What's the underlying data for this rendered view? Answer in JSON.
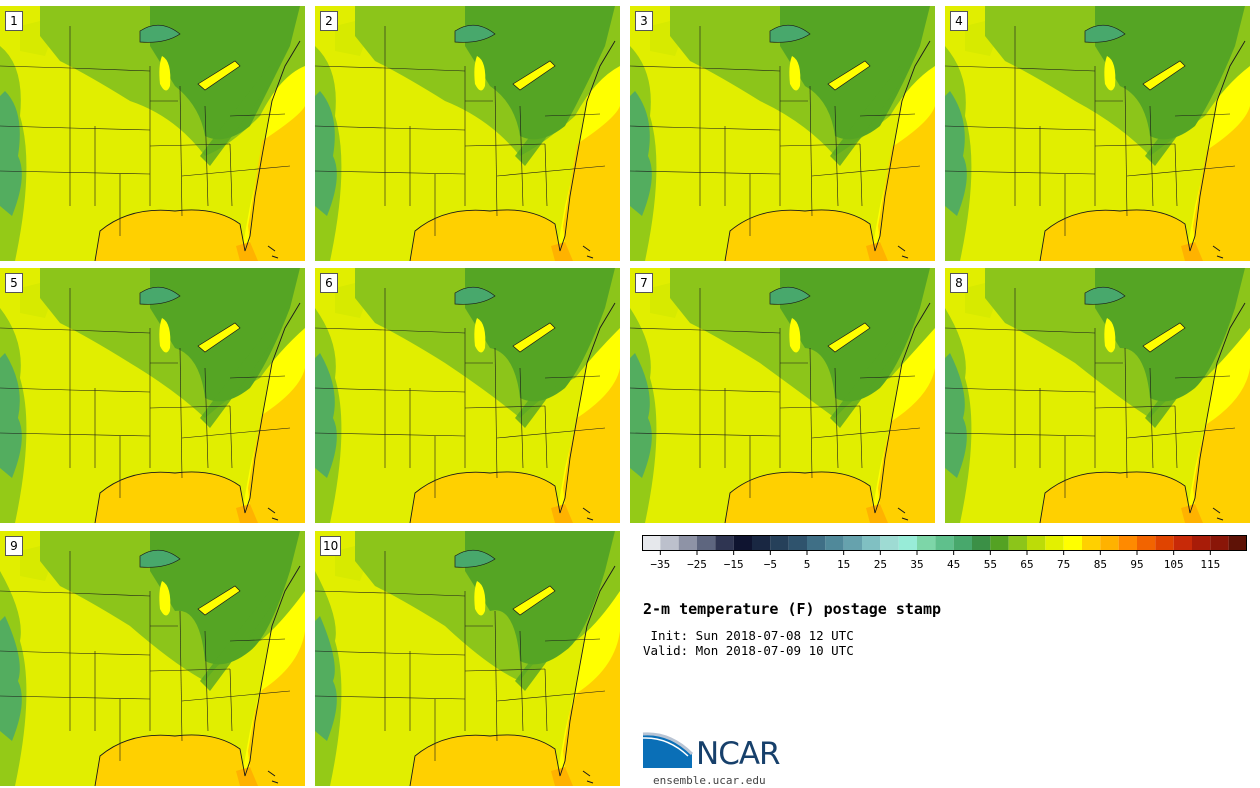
{
  "figure": {
    "title": "2-m temperature (F) postage stamp",
    "init_line": " Init: Sun 2018-07-08 12 UTC",
    "valid_line": "Valid: Mon 2018-07-09 10 UTC"
  },
  "members": [
    "1",
    "2",
    "3",
    "4",
    "5",
    "6",
    "7",
    "8",
    "9",
    "10"
  ],
  "colorbar": {
    "units": "F",
    "tick_labels": [
      "−35",
      "−25",
      "−15",
      "−5",
      "5",
      "15",
      "25",
      "35",
      "45",
      "55",
      "65",
      "75",
      "85",
      "95",
      "105",
      "115"
    ],
    "bins": [
      {
        "lo": -40,
        "hi": -35,
        "color": "#e6e8ec"
      },
      {
        "lo": -35,
        "hi": -30,
        "color": "#bcc0cc"
      },
      {
        "lo": -30,
        "hi": -25,
        "color": "#8e93a6"
      },
      {
        "lo": -25,
        "hi": -20,
        "color": "#5e667f"
      },
      {
        "lo": -20,
        "hi": -15,
        "color": "#2f3552"
      },
      {
        "lo": -15,
        "hi": -10,
        "color": "#0f1430"
      },
      {
        "lo": -10,
        "hi": -5,
        "color": "#192742"
      },
      {
        "lo": -5,
        "hi": 0,
        "color": "#26405a"
      },
      {
        "lo": 0,
        "hi": 5,
        "color": "#2f536d"
      },
      {
        "lo": 5,
        "hi": 10,
        "color": "#3f6f86"
      },
      {
        "lo": 10,
        "hi": 15,
        "color": "#50899a"
      },
      {
        "lo": 15,
        "hi": 20,
        "color": "#66a2ad"
      },
      {
        "lo": 20,
        "hi": 25,
        "color": "#80c0c2"
      },
      {
        "lo": 25,
        "hi": 30,
        "color": "#9edbd3"
      },
      {
        "lo": 30,
        "hi": 35,
        "color": "#98ecd8"
      },
      {
        "lo": 35,
        "hi": 40,
        "color": "#7dd6a8"
      },
      {
        "lo": 40,
        "hi": 45,
        "color": "#5fc08c"
      },
      {
        "lo": 45,
        "hi": 50,
        "color": "#48a86c"
      },
      {
        "lo": 50,
        "hi": 55,
        "color": "#3b9046"
      },
      {
        "lo": 55,
        "hi": 60,
        "color": "#54a223"
      },
      {
        "lo": 60,
        "hi": 65,
        "color": "#8cc51a"
      },
      {
        "lo": 65,
        "hi": 70,
        "color": "#bcdc08"
      },
      {
        "lo": 70,
        "hi": 75,
        "color": "#e3f000"
      },
      {
        "lo": 75,
        "hi": 80,
        "color": "#ffff00"
      },
      {
        "lo": 80,
        "hi": 85,
        "color": "#ffd000"
      },
      {
        "lo": 85,
        "hi": 90,
        "color": "#ffb200"
      },
      {
        "lo": 90,
        "hi": 95,
        "color": "#ff8a00"
      },
      {
        "lo": 95,
        "hi": 100,
        "color": "#f26400"
      },
      {
        "lo": 100,
        "hi": 105,
        "color": "#e04400"
      },
      {
        "lo": 105,
        "hi": 110,
        "color": "#c82a08"
      },
      {
        "lo": 110,
        "hi": 115,
        "color": "#a81c08"
      },
      {
        "lo": 115,
        "hi": 120,
        "color": "#8a1608"
      },
      {
        "lo": 120,
        "hi": 125,
        "color": "#5e1206"
      }
    ]
  },
  "logo": {
    "wordmark": "NCAR",
    "url": "ensemble.ucar.edu"
  },
  "map_colors": {
    "land": "#e1ee00",
    "west_warm": "#d7ea00",
    "dark_green": "#55a524",
    "med_green": "#8cc51a",
    "teal": "#48a86c",
    "ocean_atlantic": "#ffff00",
    "gulf": "#ffd000",
    "hot_spots": "#ffb200",
    "lake_warm": "#ffff00",
    "lines": "#1a1a1a"
  }
}
